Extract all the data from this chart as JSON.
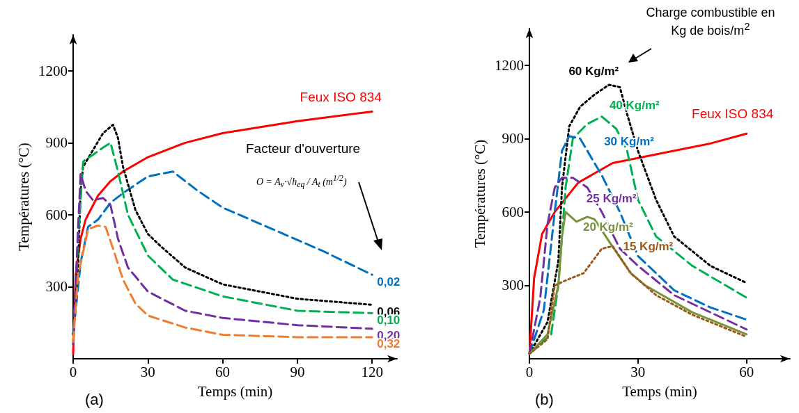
{
  "chart_data": [
    {
      "type": "line",
      "xlabel": "Temps (min)",
      "ylabel": "Températures (°C)",
      "annotations": [
        "(a)",
        "Facteur d'ouverture",
        "O = A$_{v}$·√h$_{eq}$ / A$_{t}$  (m$^{1/2}$)"
      ],
      "xlim": [
        0,
        130
      ],
      "xticks": [
        0,
        30,
        60,
        90,
        120
      ],
      "ylim": [
        0,
        1350
      ],
      "yticks": [
        300,
        600,
        900,
        1200
      ],
      "grid": false,
      "legend": false,
      "marker": "none",
      "series": [
        {
          "name": "Feux ISO 834",
          "color": "#ff0000",
          "line_style": "solid",
          "x": [
            0,
            1,
            3,
            5,
            10,
            15,
            20,
            30,
            45,
            60,
            90,
            120
          ],
          "values": [
            20,
            350,
            500,
            580,
            680,
            740,
            780,
            840,
            900,
            940,
            990,
            1030
          ]
        },
        {
          "name": "0,02",
          "color": "#0070c0",
          "line_style": "dashed",
          "x": [
            0,
            3,
            6,
            10,
            15,
            20,
            30,
            40,
            50,
            60,
            80,
            100,
            120
          ],
          "values": [
            100,
            400,
            550,
            580,
            650,
            690,
            760,
            780,
            700,
            630,
            540,
            450,
            350
          ]
        },
        {
          "name": "0,06",
          "color": "#000000",
          "line_style": "dotted",
          "x": [
            0,
            2,
            3,
            4,
            8,
            12,
            16,
            18,
            20,
            25,
            30,
            35,
            45,
            60,
            90,
            120
          ],
          "values": [
            100,
            400,
            700,
            800,
            870,
            940,
            975,
            920,
            800,
            620,
            520,
            470,
            380,
            310,
            250,
            225
          ]
        },
        {
          "name": "0,10",
          "color": "#00b050",
          "line_style": "dashed",
          "x": [
            0,
            2,
            4,
            5,
            8,
            12,
            15,
            18,
            22,
            30,
            40,
            60,
            90,
            120
          ],
          "values": [
            60,
            500,
            820,
            830,
            850,
            880,
            900,
            780,
            600,
            430,
            330,
            260,
            200,
            190
          ]
        },
        {
          "name": "0,20",
          "color": "#7030a0",
          "line_style": "dashed",
          "x": [
            0,
            2,
            3,
            5,
            8,
            12,
            15,
            18,
            22,
            30,
            45,
            60,
            90,
            120
          ],
          "values": [
            60,
            550,
            770,
            700,
            660,
            670,
            640,
            500,
            380,
            280,
            200,
            170,
            140,
            125
          ]
        },
        {
          "name": "0,32",
          "color": "#ed7d31",
          "line_style": "dashed",
          "x": [
            0,
            2,
            6,
            10,
            13,
            16,
            20,
            25,
            30,
            45,
            60,
            90,
            120
          ],
          "values": [
            70,
            350,
            540,
            555,
            550,
            460,
            330,
            230,
            180,
            130,
            100,
            90,
            90
          ]
        }
      ]
    },
    {
      "type": "line",
      "xlabel": "Temps (min)",
      "ylabel": "Températures (°C)",
      "annotations": [
        "(b)",
        "Charge combustible en Kg de bois/m$^{2}$"
      ],
      "xlim": [
        0,
        72
      ],
      "xticks": [
        0,
        30,
        60
      ],
      "ylim": [
        0,
        1350
      ],
      "yticks": [
        300,
        600,
        900,
        1200
      ],
      "grid": false,
      "legend": false,
      "marker": "none",
      "series": [
        {
          "name": "Feux ISO 834",
          "color": "#ff0000",
          "line_style": "solid",
          "x": [
            0,
            1.3,
            3.5,
            7,
            13.5,
            23,
            50,
            60
          ],
          "values": [
            20,
            330,
            510,
            600,
            720,
            800,
            880,
            920
          ]
        },
        {
          "name": "60 Kg/m²",
          "color": "#000000",
          "line_style": "dotted",
          "x": [
            0,
            5,
            8,
            9,
            11,
            14,
            18,
            22,
            25,
            27,
            30,
            35,
            40,
            50,
            60
          ],
          "values": [
            20,
            150,
            400,
            700,
            950,
            1030,
            1080,
            1120,
            1110,
            1000,
            850,
            650,
            500,
            380,
            310
          ]
        },
        {
          "name": "40 Kg/m²",
          "color": "#00b050",
          "line_style": "dashed",
          "x": [
            0,
            6,
            8,
            10,
            12,
            16,
            20,
            24,
            27,
            30,
            35,
            45,
            60
          ],
          "values": [
            20,
            100,
            300,
            700,
            900,
            960,
            990,
            940,
            850,
            650,
            500,
            380,
            250
          ]
        },
        {
          "name": "30 Kg/m²",
          "color": "#0070c0",
          "line_style": "dashed",
          "x": [
            0,
            4,
            7,
            9,
            11,
            14,
            20,
            25,
            30,
            40,
            50,
            60
          ],
          "values": [
            20,
            200,
            600,
            850,
            910,
            900,
            750,
            600,
            420,
            280,
            210,
            160
          ]
        },
        {
          "name": "25 Kg/m²",
          "color": "#7030a0",
          "line_style": "dashed",
          "x": [
            0,
            3,
            5,
            7,
            9,
            12,
            16,
            20,
            25,
            30,
            40,
            60
          ],
          "values": [
            20,
            250,
            550,
            700,
            740,
            740,
            700,
            600,
            450,
            380,
            260,
            120
          ]
        },
        {
          "name": "20 Kg/m²",
          "color": "#77933c",
          "line_style": "solid",
          "x": [
            0,
            5,
            8,
            9,
            10,
            13,
            16,
            18,
            22,
            28,
            32,
            45,
            60
          ],
          "values": [
            20,
            100,
            300,
            500,
            600,
            560,
            580,
            570,
            480,
            350,
            300,
            190,
            100
          ]
        },
        {
          "name": "15 Kg/m²",
          "color": "#9c5a1e",
          "line_style": "dotted",
          "x": [
            0,
            5,
            7,
            10,
            15,
            20,
            23,
            28,
            35,
            45,
            60
          ],
          "values": [
            20,
            80,
            300,
            320,
            350,
            450,
            460,
            350,
            260,
            180,
            90
          ]
        }
      ]
    }
  ]
}
